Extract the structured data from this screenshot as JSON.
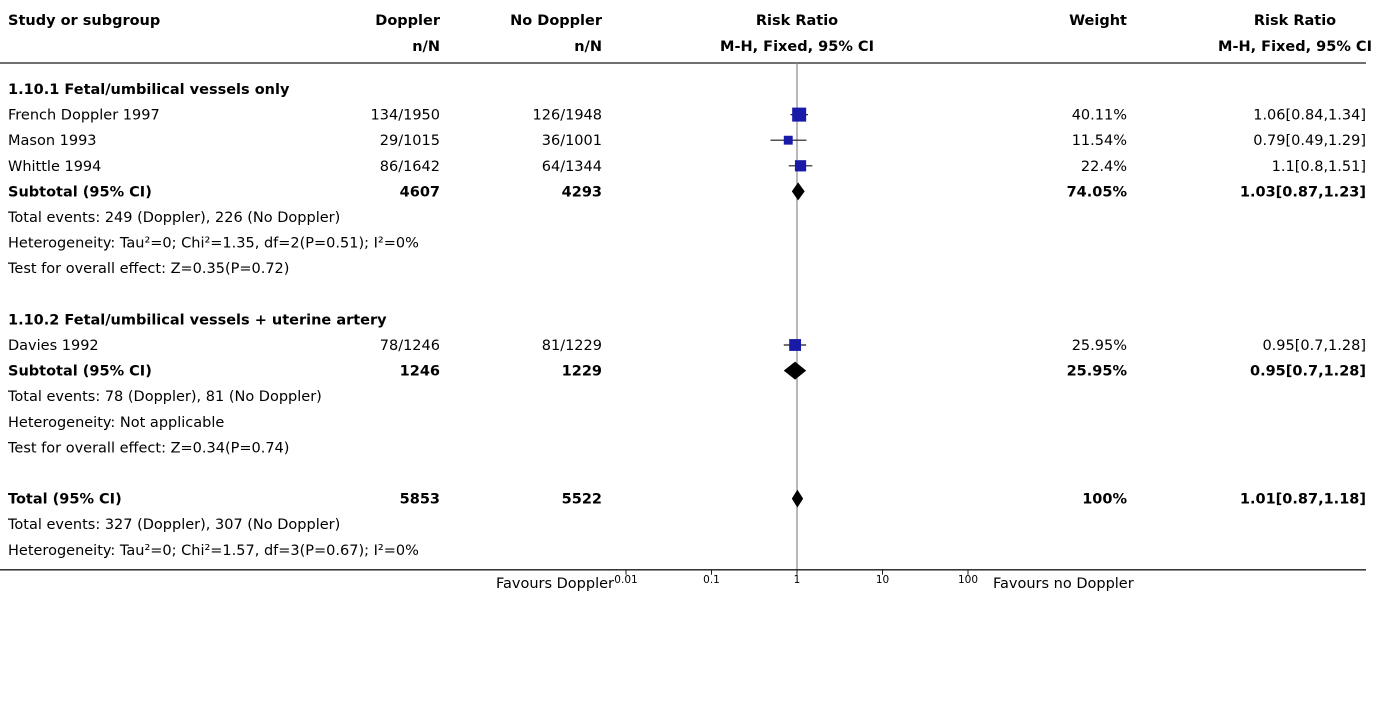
{
  "chart_data": {
    "type": "forest",
    "scale": "log",
    "xlim": [
      0.01,
      100
    ],
    "ticks": [
      "0.01",
      "0.1",
      "1",
      "10",
      "100"
    ],
    "tick_values": [
      0.01,
      0.1,
      1,
      10,
      100
    ],
    "favours_left": "Favours Doppler",
    "favours_right": "Favours no Doppler",
    "headers": {
      "study": "Study or subgroup",
      "exp": "Doppler",
      "exp_sub": "n/N",
      "ctrl": "No Doppler",
      "ctrl_sub": "n/N",
      "plot": "Risk Ratio",
      "plot_sub": "M-H, Fixed, 95% CI",
      "weight": "Weight",
      "rr": "Risk Ratio",
      "rr_sub": "M-H, Fixed, 95% CI"
    },
    "rows": [
      {
        "kind": "group",
        "label": "1.10.1 Fetal/umbilical vessels only"
      },
      {
        "kind": "study",
        "label": "French Doppler 1997",
        "exp": "134/1950",
        "ctrl": "126/1948",
        "weight": "40.11%",
        "ci_text": "1.06[0.84,1.34]",
        "rr": 1.06,
        "lo": 0.84,
        "hi": 1.34,
        "w": 40.11
      },
      {
        "kind": "study",
        "label": "Mason 1993",
        "exp": "29/1015",
        "ctrl": "36/1001",
        "weight": "11.54%",
        "ci_text": "0.79[0.49,1.29]",
        "rr": 0.79,
        "lo": 0.49,
        "hi": 1.29,
        "w": 11.54
      },
      {
        "kind": "study",
        "label": "Whittle 1994",
        "exp": "86/1642",
        "ctrl": "64/1344",
        "weight": "22.4%",
        "ci_text": "1.1[0.8,1.51]",
        "rr": 1.1,
        "lo": 0.8,
        "hi": 1.51,
        "w": 22.4
      },
      {
        "kind": "subtotal",
        "label": "Subtotal (95% CI)",
        "exp": "4607",
        "ctrl": "4293",
        "weight": "74.05%",
        "ci_text": "1.03[0.87,1.23]",
        "rr": 1.03,
        "lo": 0.87,
        "hi": 1.23
      },
      {
        "kind": "note",
        "label": "Total events: 249 (Doppler), 226 (No Doppler)"
      },
      {
        "kind": "note",
        "label": "Heterogeneity: Tau²=0; Chi²=1.35, df=2(P=0.51); I²=0%"
      },
      {
        "kind": "note",
        "label": "Test for overall effect: Z=0.35(P=0.72)"
      },
      {
        "kind": "blank"
      },
      {
        "kind": "group",
        "label": "1.10.2 Fetal/umbilical vessels + uterine artery"
      },
      {
        "kind": "study",
        "label": "Davies 1992",
        "exp": "78/1246",
        "ctrl": "81/1229",
        "weight": "25.95%",
        "ci_text": "0.95[0.7,1.28]",
        "rr": 0.95,
        "lo": 0.7,
        "hi": 1.28,
        "w": 25.95
      },
      {
        "kind": "subtotal",
        "label": "Subtotal (95% CI)",
        "exp": "1246",
        "ctrl": "1229",
        "weight": "25.95%",
        "ci_text": "0.95[0.7,1.28]",
        "rr": 0.95,
        "lo": 0.7,
        "hi": 1.28
      },
      {
        "kind": "note",
        "label": "Total events: 78 (Doppler), 81 (No Doppler)"
      },
      {
        "kind": "note",
        "label": "Heterogeneity: Not applicable"
      },
      {
        "kind": "note",
        "label": "Test for overall effect: Z=0.34(P=0.74)"
      },
      {
        "kind": "blank"
      },
      {
        "kind": "total",
        "label": "Total (95% CI)",
        "exp": "5853",
        "ctrl": "5522",
        "weight": "100%",
        "ci_text": "1.01[0.87,1.18]",
        "rr": 1.01,
        "lo": 0.87,
        "hi": 1.18
      },
      {
        "kind": "note",
        "label": "Total events: 327 (Doppler), 307 (No Doppler)"
      },
      {
        "kind": "note",
        "label": "Heterogeneity: Tau²=0; Chi²=1.57, df=3(P=0.67); I²=0%"
      }
    ],
    "colors": {
      "square": "#1a1aa8",
      "line": "#1a1a1a",
      "diamond": "#000000",
      "axis": "#888888"
    }
  }
}
